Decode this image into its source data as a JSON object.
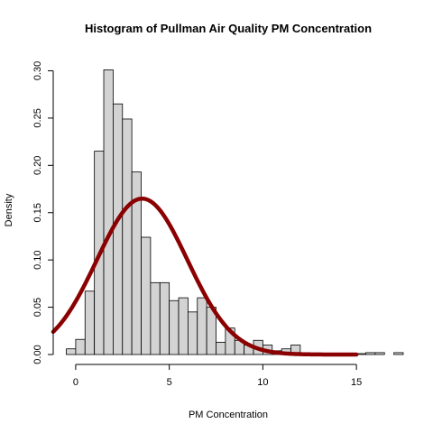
{
  "chart_data": {
    "type": "bar",
    "title": "Histogram of Pullman Air Quality PM Concentration",
    "xlabel": "PM Concentration",
    "ylabel": "Density",
    "xlim": [
      -1.2,
      17.5
    ],
    "ylim": [
      0,
      0.31
    ],
    "x_ticks": [
      0,
      5,
      10,
      15
    ],
    "x_tick_labels": [
      "0",
      "5",
      "10",
      "15"
    ],
    "y_ticks": [
      0.0,
      0.05,
      0.1,
      0.15,
      0.2,
      0.25,
      0.3
    ],
    "y_tick_labels": [
      "0.00",
      "0.05",
      "0.10",
      "0.15",
      "0.20",
      "0.25",
      "0.30"
    ],
    "bin_width": 0.5,
    "bin_left_edges": [
      -0.5,
      0.0,
      0.5,
      1.0,
      1.5,
      2.0,
      2.5,
      3.0,
      3.5,
      4.0,
      4.5,
      5.0,
      5.5,
      6.0,
      6.5,
      7.0,
      7.5,
      8.0,
      8.5,
      9.0,
      9.5,
      10.0,
      10.5,
      11.0,
      11.5,
      12.0,
      12.5,
      13.0,
      13.5,
      14.0,
      14.5,
      15.0,
      15.5,
      16.0,
      16.5,
      17.0
    ],
    "densities": [
      0.006,
      0.016,
      0.067,
      0.215,
      0.301,
      0.265,
      0.249,
      0.193,
      0.124,
      0.076,
      0.076,
      0.057,
      0.06,
      0.045,
      0.06,
      0.05,
      0.013,
      0.028,
      0.015,
      0.01,
      0.015,
      0.01,
      0.004,
      0.006,
      0.01,
      0.002,
      0.001,
      0.001,
      0.001,
      0.0,
      0.001,
      0.001,
      0.002,
      0.002,
      0.0,
      0.002
    ],
    "series": [
      {
        "type": "line",
        "style": "normal density curve",
        "mean": 3.55,
        "sd": 2.42,
        "x_range": [
          -1.2,
          15.0
        ],
        "color": "#8b0000"
      }
    ],
    "bar_color": "#d3d3d3",
    "grid": false
  }
}
